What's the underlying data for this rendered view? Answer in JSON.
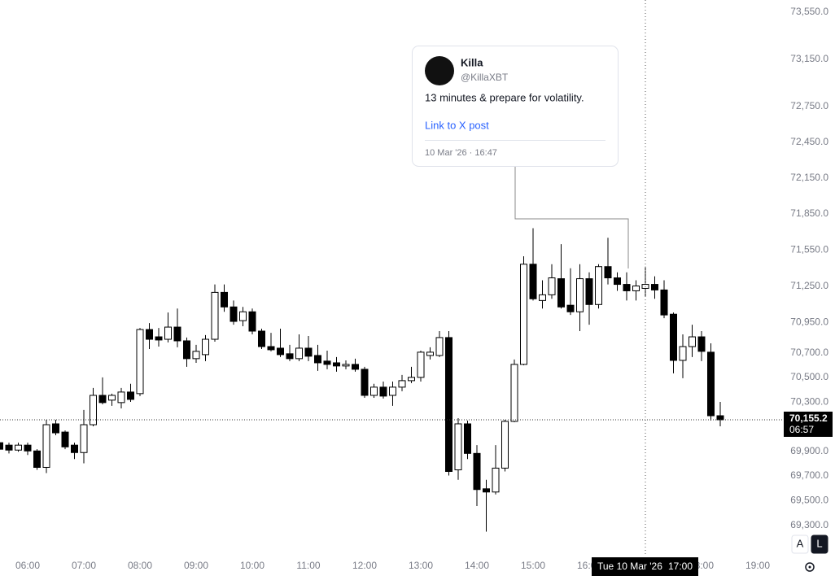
{
  "chart_data": {
    "type": "candlestick",
    "x": [
      "05:30",
      "05:40",
      "05:50",
      "06:00",
      "06:10",
      "06:20",
      "06:30",
      "06:40",
      "06:50",
      "07:00",
      "07:10",
      "07:20",
      "07:30",
      "07:40",
      "07:50",
      "08:00",
      "08:10",
      "08:20",
      "08:30",
      "08:40",
      "08:50",
      "09:00",
      "09:10",
      "09:20",
      "09:30",
      "09:40",
      "09:50",
      "10:00",
      "10:10",
      "10:20",
      "10:30",
      "10:40",
      "10:50",
      "11:00",
      "11:10",
      "11:20",
      "11:30",
      "11:40",
      "11:50",
      "12:00",
      "12:10",
      "12:20",
      "12:30",
      "12:40",
      "12:50",
      "13:00",
      "13:10",
      "13:20",
      "13:30",
      "13:40",
      "13:50",
      "14:00",
      "14:10",
      "14:20",
      "14:30",
      "14:40",
      "14:50",
      "15:00",
      "15:10",
      "15:20",
      "15:30",
      "15:40",
      "15:50",
      "16:00",
      "16:10",
      "16:20",
      "16:30",
      "16:40",
      "16:50",
      "17:00",
      "17:10",
      "17:20",
      "17:30",
      "17:40",
      "17:50",
      "18:00",
      "18:10",
      "18:20"
    ],
    "open": [
      69969,
      69949,
      69909,
      69949,
      69902,
      69769,
      70122,
      70055,
      69949,
      69889,
      70115,
      70354,
      70315,
      70295,
      70381,
      70368,
      70893,
      70833,
      70813,
      70913,
      70800,
      70654,
      70687,
      70813,
      71199,
      71079,
      70966,
      71039,
      70880,
      70753,
      70740,
      70694,
      70654,
      70740,
      70680,
      70634,
      70620,
      70594,
      70607,
      70567,
      70354,
      70421,
      70354,
      70421,
      70474,
      70501,
      70680,
      70680,
      70827,
      69749,
      70122,
      69882,
      69596,
      69570,
      69763,
      70142,
      70607,
      71432,
      71132,
      71179,
      71312,
      71093,
      71039,
      71312,
      71099,
      71412,
      71319,
      71265,
      71212,
      71232,
      71265,
      71219,
      71019,
      70640,
      70753,
      70833,
      70707,
      70188
    ],
    "high": [
      70002,
      69969,
      69969,
      69969,
      69916,
      70155,
      70155,
      70068,
      69969,
      70235,
      70414,
      70501,
      70368,
      70414,
      70448,
      70906,
      70946,
      70906,
      71033,
      71066,
      70827,
      70767,
      70847,
      71265,
      71265,
      71132,
      71079,
      71066,
      70900,
      70866,
      70900,
      70767,
      70853,
      70840,
      70767,
      70720,
      70667,
      70640,
      70654,
      70587,
      70448,
      70467,
      70467,
      70521,
      70587,
      70720,
      70747,
      70880,
      70880,
      70168,
      70148,
      69949,
      69669,
      69949,
      70155,
      70647,
      71498,
      71731,
      71299,
      71432,
      71598,
      71398,
      71432,
      71365,
      71432,
      71651,
      71365,
      71365,
      71299,
      71412,
      71332,
      71299,
      71033,
      70853,
      70933,
      70880,
      70780,
      70301
    ],
    "low": [
      69896,
      69882,
      69896,
      69869,
      69749,
      69723,
      70029,
      69916,
      69836,
      69802,
      70102,
      70281,
      70268,
      70248,
      70301,
      70348,
      70733,
      70753,
      70787,
      70747,
      70587,
      70620,
      70634,
      70793,
      71039,
      70933,
      70920,
      70853,
      70733,
      70714,
      70667,
      70634,
      70634,
      70634,
      70554,
      70567,
      70547,
      70567,
      70547,
      70334,
      70334,
      70328,
      70268,
      70388,
      70454,
      70467,
      70647,
      70667,
      69703,
      69669,
      69836,
      69457,
      69251,
      69550,
      69736,
      70135,
      70600,
      71132,
      71066,
      71146,
      71066,
      71013,
      70880,
      70933,
      71066,
      71265,
      71212,
      71132,
      71132,
      71166,
      71146,
      70986,
      70534,
      70494,
      70667,
      70634,
      70148,
      70102
    ],
    "close": [
      69916,
      69909,
      69949,
      69902,
      69769,
      70115,
      70049,
      69935,
      69889,
      70115,
      70354,
      70295,
      70354,
      70381,
      70321,
      70893,
      70813,
      70807,
      70913,
      70800,
      70654,
      70714,
      70813,
      71199,
      71079,
      70960,
      71039,
      70880,
      70753,
      70727,
      70687,
      70654,
      70740,
      70674,
      70620,
      70607,
      70594,
      70607,
      70567,
      70354,
      70421,
      70348,
      70421,
      70474,
      70501,
      70707,
      70707,
      70827,
      69736,
      70122,
      69882,
      69590,
      69570,
      69763,
      70142,
      70607,
      71432,
      71146,
      71179,
      71319,
      71079,
      71039,
      71312,
      71099,
      71412,
      71319,
      71265,
      71212,
      71252,
      71265,
      71219,
      71013,
      70640,
      70753,
      70833,
      70714,
      70188,
      70155.2
    ],
    "up_color": "#ffffff",
    "down_color": "#000000",
    "ylim": [
      69065,
      73654
    ],
    "log_scale": true,
    "grid": false,
    "yticks": [
      {
        "value": 73550,
        "label": "73,550.0"
      },
      {
        "value": 73150,
        "label": "73,150.0"
      },
      {
        "value": 72750,
        "label": "72,750.0"
      },
      {
        "value": 72450,
        "label": "72,450.0"
      },
      {
        "value": 72150,
        "label": "72,150.0"
      },
      {
        "value": 71850,
        "label": "71,850.0"
      },
      {
        "value": 71550,
        "label": "71,550.0"
      },
      {
        "value": 71250,
        "label": "71,250.0"
      },
      {
        "value": 70950,
        "label": "70,950.0"
      },
      {
        "value": 70700,
        "label": "70,700.0"
      },
      {
        "value": 70500,
        "label": "70,500.0"
      },
      {
        "value": 70300,
        "label": "70,300.0"
      },
      {
        "value": 69900,
        "label": "69,900.0"
      },
      {
        "value": 69700,
        "label": "69,700.0"
      },
      {
        "value": 69500,
        "label": "69,500.0"
      },
      {
        "value": 69300,
        "label": "69,300.0"
      }
    ],
    "xticks": [
      "06:00",
      "07:00",
      "08:00",
      "09:00",
      "10:00",
      "11:00",
      "12:00",
      "13:00",
      "14:00",
      "15:00",
      "16:00",
      "17:00",
      "18:00",
      "19:00"
    ],
    "price_line": {
      "value": 70155.2,
      "label": "70,155.2",
      "countdown": "06:57"
    },
    "crosshair": {
      "date": "Tue 10 Mar '26",
      "time": "17:00"
    },
    "scale_buttons": [
      "A",
      "L"
    ]
  },
  "post": {
    "name": "Killa",
    "handle": "@KillaXBT",
    "text": "13 minutes & prepare for volatility.",
    "link": "Link to X post",
    "date": "10 Mar '26 · 16:47"
  }
}
